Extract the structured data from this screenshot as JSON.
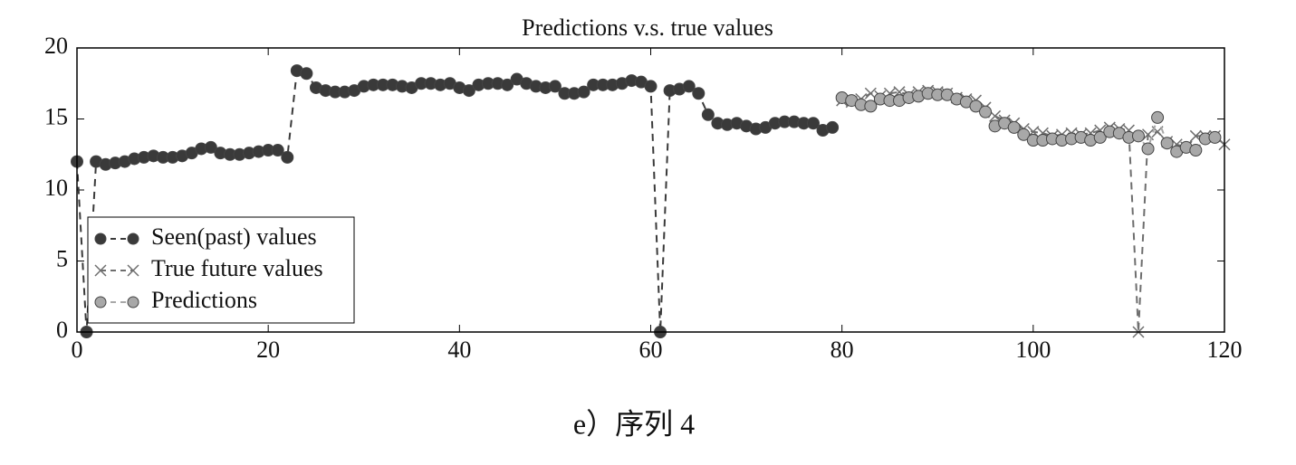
{
  "chart_data": {
    "type": "line",
    "title": "Predictions v.s. true values",
    "caption": "e）序列 4",
    "xlim": [
      0,
      120
    ],
    "ylim": [
      0,
      20
    ],
    "xticks": [
      0,
      20,
      40,
      60,
      80,
      100,
      120
    ],
    "yticks": [
      0,
      5,
      10,
      15,
      20
    ],
    "legend": "lower left",
    "series": [
      {
        "name": "Seen(past) values",
        "color": "#3a3a3a",
        "marker": "circle",
        "x": [
          0,
          1,
          2,
          3,
          4,
          5,
          6,
          7,
          8,
          9,
          10,
          11,
          12,
          13,
          14,
          15,
          16,
          17,
          18,
          19,
          20,
          21,
          22,
          23,
          24,
          25,
          26,
          27,
          28,
          29,
          30,
          31,
          32,
          33,
          34,
          35,
          36,
          37,
          38,
          39,
          40,
          41,
          42,
          43,
          44,
          45,
          46,
          47,
          48,
          49,
          50,
          51,
          52,
          53,
          54,
          55,
          56,
          57,
          58,
          59,
          60,
          61,
          62,
          63,
          64,
          65,
          66,
          67,
          68,
          69,
          70,
          71,
          72,
          73,
          74,
          75,
          76,
          77,
          78,
          79
        ],
        "values": [
          12.0,
          0,
          12.0,
          11.8,
          11.9,
          12.0,
          12.2,
          12.3,
          12.4,
          12.3,
          12.3,
          12.4,
          12.6,
          12.9,
          13.0,
          12.6,
          12.5,
          12.5,
          12.6,
          12.7,
          12.8,
          12.8,
          12.3,
          18.4,
          18.2,
          17.2,
          17.0,
          16.9,
          16.9,
          17.0,
          17.3,
          17.4,
          17.4,
          17.4,
          17.3,
          17.2,
          17.5,
          17.5,
          17.4,
          17.5,
          17.2,
          17.0,
          17.4,
          17.5,
          17.5,
          17.4,
          17.8,
          17.5,
          17.3,
          17.2,
          17.3,
          16.8,
          16.8,
          16.9,
          17.4,
          17.4,
          17.4,
          17.5,
          17.7,
          17.6,
          17.3,
          0,
          17.0,
          17.1,
          17.3,
          16.8,
          15.3,
          14.7,
          14.6,
          14.7,
          14.5,
          14.3,
          14.4,
          14.7,
          14.8,
          14.8,
          14.7,
          14.7,
          14.2,
          14.4
        ]
      },
      {
        "name": "True future values",
        "color": "#6e6e6e",
        "marker": "x",
        "x": [
          80,
          81,
          82,
          83,
          84,
          85,
          86,
          87,
          88,
          89,
          90,
          91,
          92,
          93,
          94,
          95,
          96,
          97,
          98,
          99,
          100,
          101,
          102,
          103,
          104,
          105,
          106,
          107,
          108,
          109,
          110,
          111,
          112,
          113,
          114,
          115,
          116,
          117,
          118,
          119,
          120
        ],
        "values": [
          16.3,
          16.2,
          16.4,
          16.8,
          16.6,
          16.8,
          16.9,
          16.7,
          16.9,
          17.0,
          16.9,
          16.8,
          16.5,
          16.4,
          16.3,
          15.8,
          15.2,
          14.9,
          14.7,
          14.3,
          14.1,
          14.0,
          13.8,
          13.9,
          14.0,
          13.9,
          14.0,
          14.2,
          14.4,
          14.3,
          14.2,
          0,
          13.9,
          14.1,
          13.4,
          13.2,
          13.0,
          13.8,
          13.8,
          13.8,
          13.2
        ]
      },
      {
        "name": "Predictions",
        "color": "#a8a8a8",
        "marker": "circle",
        "x": [
          80,
          81,
          82,
          83,
          84,
          85,
          86,
          87,
          88,
          89,
          90,
          91,
          92,
          93,
          94,
          95,
          96,
          97,
          98,
          99,
          100,
          101,
          102,
          103,
          104,
          105,
          106,
          107,
          108,
          109,
          110,
          111,
          112,
          113,
          114,
          115,
          116,
          117,
          118,
          119
        ],
        "values": [
          16.5,
          16.3,
          16.0,
          15.9,
          16.4,
          16.3,
          16.3,
          16.5,
          16.6,
          16.8,
          16.7,
          16.7,
          16.4,
          16.2,
          15.9,
          15.5,
          14.5,
          14.7,
          14.4,
          13.9,
          13.5,
          13.5,
          13.6,
          13.5,
          13.6,
          13.7,
          13.5,
          13.7,
          14.1,
          14.0,
          13.7,
          13.8,
          12.9,
          15.1,
          13.3,
          12.7,
          13.0,
          12.8,
          13.6,
          13.7
        ]
      }
    ]
  }
}
